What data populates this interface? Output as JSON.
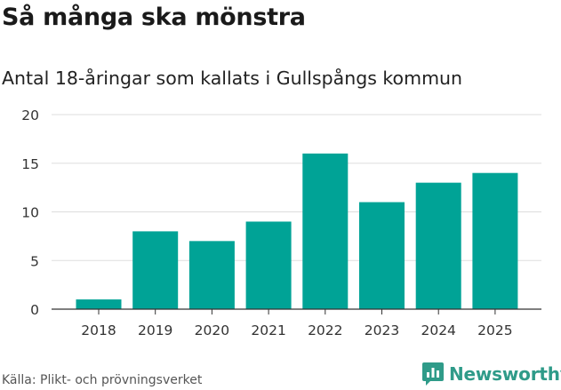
{
  "title": "Så många ska mönstra",
  "subtitle": "Antal 18-åringar som kallats i Gullspångs kommun",
  "source": "Källa: Plikt- och prövningsverket",
  "brand": {
    "name": "Newsworthy",
    "icon": "newsworthy-logo-icon"
  },
  "colors": {
    "bar": "#00a396",
    "grid": "#dddddd",
    "axis": "#333333",
    "brand": "#2f9b89"
  },
  "chart_data": {
    "type": "bar",
    "categories": [
      "2018",
      "2019",
      "2020",
      "2021",
      "2022",
      "2023",
      "2024",
      "2025"
    ],
    "values": [
      1,
      8,
      7,
      9,
      16,
      11,
      13,
      14
    ],
    "yticks": [
      "0",
      "5",
      "10",
      "15",
      "20"
    ],
    "ylim": [
      0,
      20
    ],
    "grid": true
  }
}
